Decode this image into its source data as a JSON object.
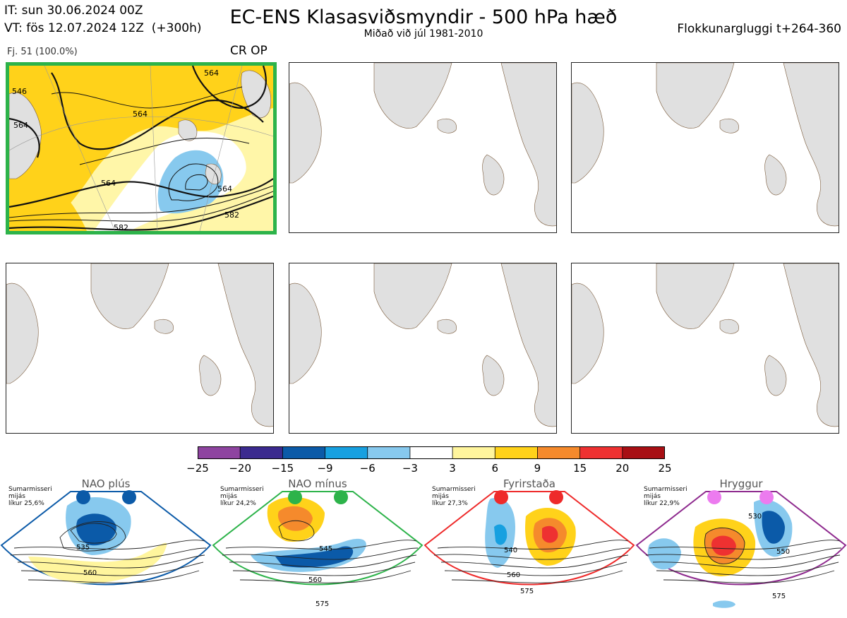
{
  "header": {
    "it_line": "IT: sun 30.06.2024 00Z",
    "vt_line": "VT: fös 12.07.2024 12Z  (+300h)",
    "title": "EC-ENS Klasasviðsmyndir - 500 hPa hæð",
    "subtitle": "Miðað við júl 1981-2010",
    "window": "Flokkunargluggi t+264-360"
  },
  "panel_main": {
    "fj_label": "Fj. 51 (100.0%)",
    "cr_op_label": "CR OP",
    "highlight_color": "#2db34a",
    "contour_labels": [
      "546",
      "564",
      "564",
      "564",
      "564",
      "582",
      "582",
      "564"
    ]
  },
  "colorbar": {
    "ticks": [
      "−25",
      "−20",
      "−15",
      "−9",
      "−6",
      "−3",
      "3",
      "6",
      "9",
      "15",
      "20",
      "25"
    ],
    "colors": [
      "#8e44a0",
      "#3b2a8f",
      "#0b5aa8",
      "#17a0e0",
      "#87c9ee",
      "#ffffff",
      "#fff59d",
      "#ffd21a",
      "#f58a2c",
      "#ee3131",
      "#a80f14"
    ]
  },
  "regimes": [
    {
      "title": "NAO plús",
      "note": "Sumarmisseri\nmijás\nlíkur 25,6%",
      "color": "#0b5aa8",
      "labels": [
        "535",
        "560"
      ]
    },
    {
      "title": "NAO mínus",
      "note": "Sumarmisseri\nmijás\nlíkur 24,2%",
      "color": "#2db34a",
      "labels": [
        "545",
        "560",
        "575"
      ]
    },
    {
      "title": "Fyrirstaða",
      "note": "Sumarmisseri\nmijás\nlíkur 27,3%",
      "color": "#ee2a2a",
      "labels": [
        "540",
        "560",
        "575"
      ]
    },
    {
      "title": "Hryggur",
      "note": "Sumarmisseri\nmijás\nlíkur 22,9%",
      "color": "#8e2a8e",
      "labels": [
        "530",
        "550",
        "575"
      ]
    }
  ]
}
